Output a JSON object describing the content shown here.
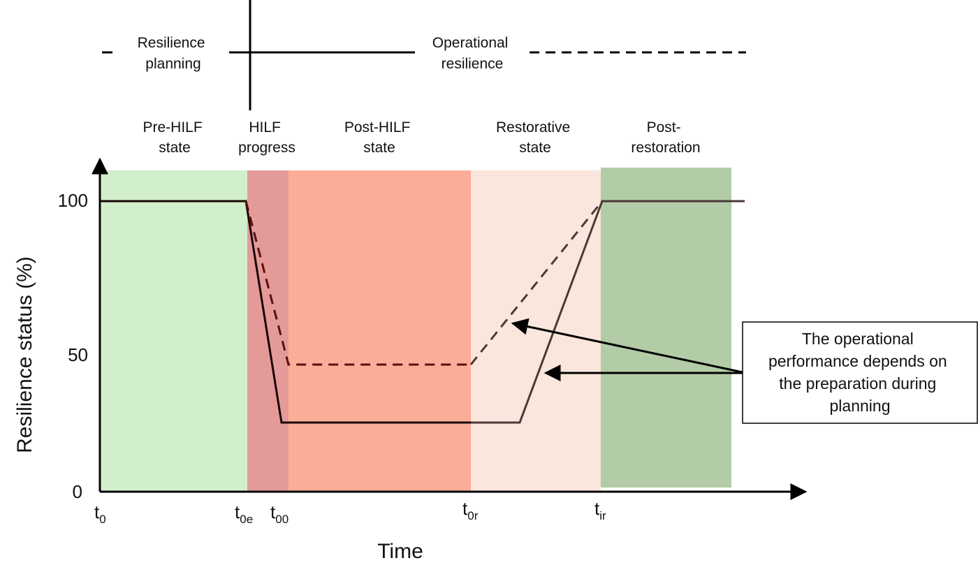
{
  "top_labels": {
    "resilience_planning": [
      "Resilience",
      "planning"
    ],
    "operational_resilience": [
      "Operational",
      "resilience"
    ]
  },
  "phases": [
    {
      "lines": [
        "Pre-HILF",
        "state"
      ],
      "color": "#d1efcb"
    },
    {
      "lines": [
        "HILF",
        "progress"
      ],
      "color": "#e49a99"
    },
    {
      "lines": [
        "Post-HILF",
        "state"
      ],
      "color": "#fbad98"
    },
    {
      "lines": [
        "Restorative",
        "state"
      ],
      "color": "#fae6dd"
    },
    {
      "lines": [
        "Post-",
        "restoration"
      ],
      "color": "#b2cca7"
    }
  ],
  "axes": {
    "y_title": "Resilience status (%)",
    "x_title": "Time",
    "y_ticks": [
      "100",
      "50",
      "0"
    ],
    "x_ticks": [
      {
        "main": "t",
        "sub": "0"
      },
      {
        "main": "t",
        "sub": "0e"
      },
      {
        "main": "t",
        "sub": "00"
      },
      {
        "main": "t",
        "sub": "0r"
      },
      {
        "main": "t",
        "sub": "ir"
      }
    ]
  },
  "curves": {
    "solid_minimum": 25,
    "dashed_minimum": 46,
    "baseline": 100
  },
  "callout": {
    "lines": [
      "The operational",
      "performance depends on",
      "the preparation during",
      "planning"
    ]
  }
}
